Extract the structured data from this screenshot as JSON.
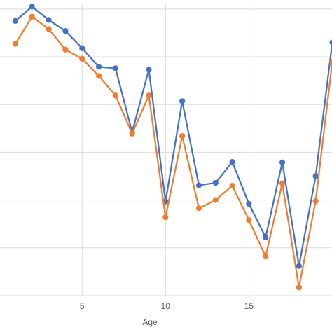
{
  "chart_data": {
    "type": "line",
    "x": [
      1,
      2,
      3,
      4,
      5,
      6,
      7,
      8,
      9,
      10,
      11,
      12,
      13,
      14,
      15,
      16,
      17,
      18,
      19,
      20
    ],
    "xticks": [
      5,
      10,
      15
    ],
    "xlabel": "Age",
    "ylabel": "",
    "title": "",
    "xlim": [
      0.1,
      20
    ],
    "ylim": [
      0,
      6.1
    ],
    "grid": true,
    "series": [
      {
        "color": "#4472c4",
        "values": [
          5.75,
          6.05,
          5.77,
          5.54,
          5.18,
          4.79,
          4.76,
          3.42,
          4.73,
          1.97,
          4.07,
          2.31,
          2.36,
          2.8,
          1.92,
          1.22,
          2.79,
          0.62,
          2.5,
          5.3
        ]
      },
      {
        "color": "#ed7d31",
        "values": [
          5.27,
          5.84,
          5.58,
          5.15,
          4.96,
          4.6,
          4.19,
          3.39,
          4.19,
          1.64,
          3.34,
          1.83,
          2.0,
          2.3,
          1.58,
          0.82,
          2.35,
          0.17,
          1.98,
          4.9
        ]
      }
    ]
  }
}
